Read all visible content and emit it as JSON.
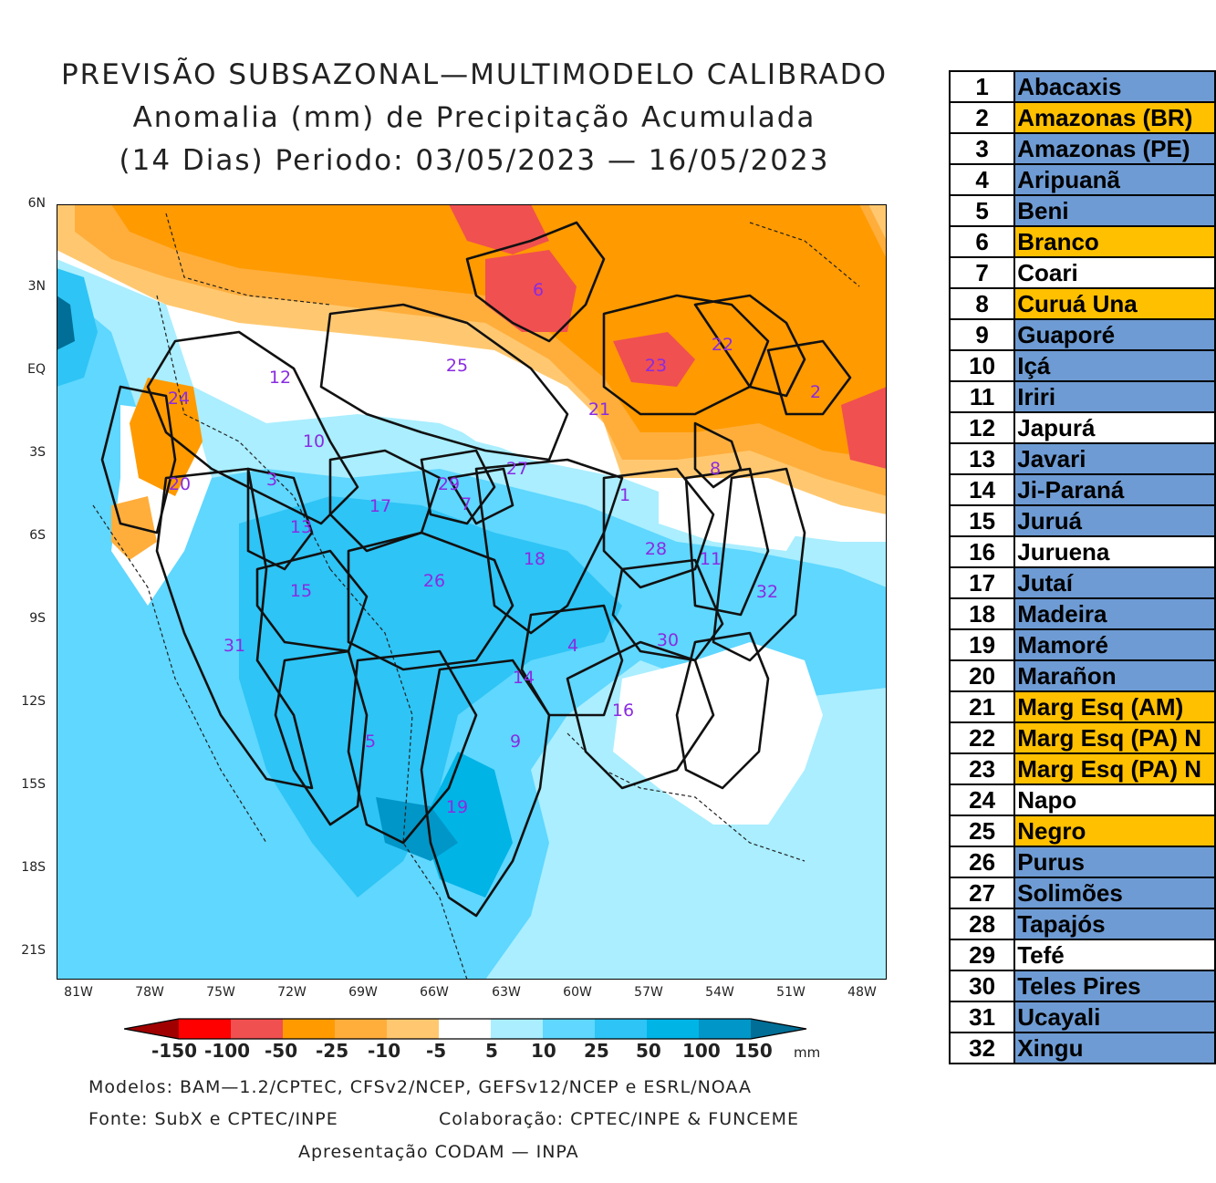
{
  "title": {
    "line1": "PREVISÃO SUBSAZONAL—MULTIMODELO CALIBRADO",
    "line2": "Anomalia (mm) de Precipitação Acumulada",
    "line3": "(14 Dias) Periodo: 03/05/2023 — 16/05/2023"
  },
  "axes": {
    "lat": [
      "6N",
      "3N",
      "EQ",
      "3S",
      "6S",
      "9S",
      "12S",
      "15S",
      "18S",
      "21S"
    ],
    "lon": [
      "81W",
      "78W",
      "75W",
      "72W",
      "69W",
      "66W",
      "63W",
      "60W",
      "57W",
      "54W",
      "51W",
      "48W"
    ]
  },
  "colorbar": {
    "labels": [
      "-150",
      "-100",
      "-50",
      "-25",
      "-10",
      "-5",
      "5",
      "10",
      "25",
      "50",
      "100",
      "150"
    ],
    "unit": "mm",
    "colors": [
      "#a00000",
      "#ff0000",
      "#f05050",
      "#ff9a00",
      "#ffae3c",
      "#ffc870",
      "#ffe0a8",
      "#ffffff",
      "#aaeeff",
      "#5fd7ff",
      "#2ec4f5",
      "#00b4e6",
      "#0096c8",
      "#006e96"
    ]
  },
  "footer": {
    "models": "Modelos: BAM—1.2/CPTEC, CFSv2/NCEP, GEFSv12/NCEP e ESRL/NOAA",
    "source": "Fonte: SubX e CPTEC/INPE",
    "collab": "Colaboração: CPTEC/INPE & FUNCEME",
    "presentation": "Apresentação CODAM — INPA"
  },
  "basin_labels": [
    "1",
    "2",
    "3",
    "4",
    "5",
    "6",
    "7",
    "8",
    "9",
    "10",
    "11",
    "12",
    "13",
    "14",
    "15",
    "16",
    "17",
    "18",
    "19",
    "20",
    "21",
    "22",
    "23",
    "24",
    "25",
    "26",
    "27",
    "28",
    "29",
    "30",
    "31",
    "32"
  ],
  "basins": [
    {
      "num": "1",
      "name": "Abacaxis",
      "status": "blue"
    },
    {
      "num": "2",
      "name": "Amazonas (BR)",
      "status": "orange"
    },
    {
      "num": "3",
      "name": "Amazonas (PE)",
      "status": "blue"
    },
    {
      "num": "4",
      "name": "Aripuanã",
      "status": "blue"
    },
    {
      "num": "5",
      "name": "Beni",
      "status": "blue"
    },
    {
      "num": "6",
      "name": "Branco",
      "status": "orange"
    },
    {
      "num": "7",
      "name": "Coari",
      "status": "white"
    },
    {
      "num": "8",
      "name": "Curuá Una",
      "status": "orange"
    },
    {
      "num": "9",
      "name": "Guaporé",
      "status": "blue"
    },
    {
      "num": "10",
      "name": "Içá",
      "status": "blue"
    },
    {
      "num": "11",
      "name": "Iriri",
      "status": "blue"
    },
    {
      "num": "12",
      "name": "Japurá",
      "status": "white"
    },
    {
      "num": "13",
      "name": "Javari",
      "status": "blue"
    },
    {
      "num": "14",
      "name": "Ji-Paraná",
      "status": "blue"
    },
    {
      "num": "15",
      "name": "Juruá",
      "status": "blue"
    },
    {
      "num": "16",
      "name": "Juruena",
      "status": "white"
    },
    {
      "num": "17",
      "name": "Jutaí",
      "status": "blue"
    },
    {
      "num": "18",
      "name": "Madeira",
      "status": "blue"
    },
    {
      "num": "19",
      "name": "Mamoré",
      "status": "blue"
    },
    {
      "num": "20",
      "name": "Marañon",
      "status": "blue"
    },
    {
      "num": "21",
      "name": "Marg Esq (AM)",
      "status": "orange"
    },
    {
      "num": "22",
      "name": "Marg Esq (PA) N",
      "status": "orange"
    },
    {
      "num": "23",
      "name": "Marg Esq (PA) N",
      "status": "orange"
    },
    {
      "num": "24",
      "name": "Napo",
      "status": "white"
    },
    {
      "num": "25",
      "name": "Negro",
      "status": "orange"
    },
    {
      "num": "26",
      "name": "Purus",
      "status": "blue"
    },
    {
      "num": "27",
      "name": "Solimões",
      "status": "blue"
    },
    {
      "num": "28",
      "name": "Tapajós",
      "status": "blue"
    },
    {
      "num": "29",
      "name": "Tefé",
      "status": "white"
    },
    {
      "num": "30",
      "name": "Teles Pires",
      "status": "blue"
    },
    {
      "num": "31",
      "name": "Ucayali",
      "status": "blue"
    },
    {
      "num": "32",
      "name": "Xingu",
      "status": "blue"
    }
  ]
}
